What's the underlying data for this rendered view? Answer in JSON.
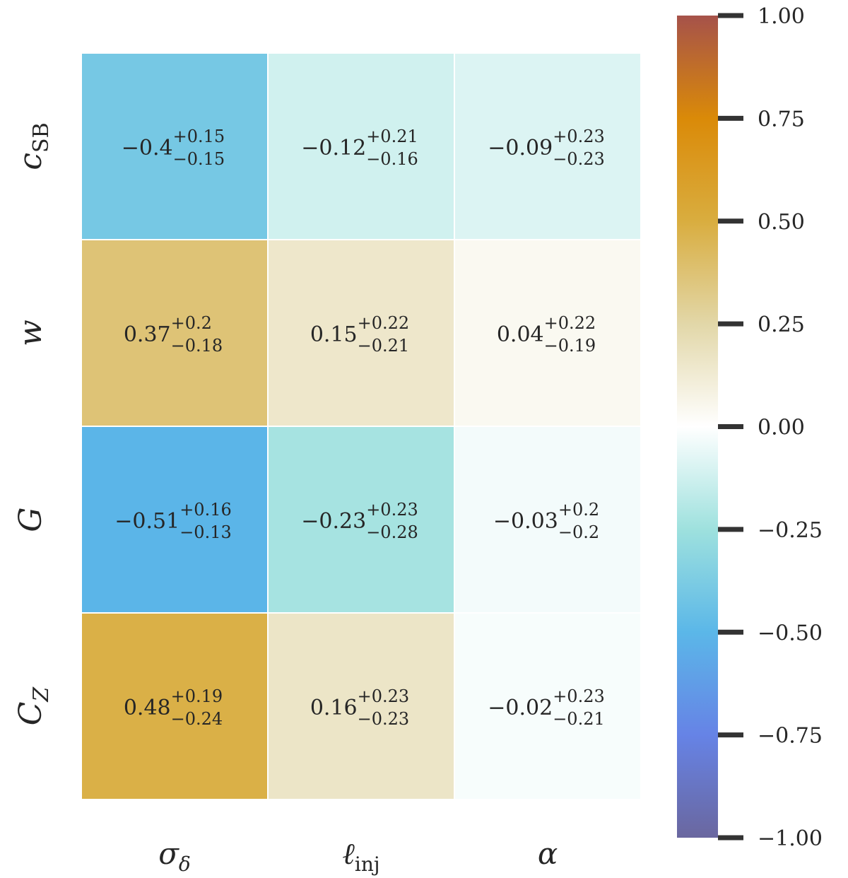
{
  "chart_data": {
    "type": "heatmap",
    "title": "",
    "row_labels": [
      {
        "main": "c",
        "sub": "SB",
        "italic_sub": false
      },
      {
        "main": "w",
        "sub": "",
        "italic_sub": false
      },
      {
        "main": "G",
        "sub": "",
        "italic_sub": false
      },
      {
        "main": "C",
        "sub": "Z",
        "italic_sub": true
      }
    ],
    "col_labels": [
      {
        "main": "σ",
        "sub": "δ",
        "italic_sub": true
      },
      {
        "main": "ℓ",
        "sub": "inj",
        "italic_sub": false
      },
      {
        "main": "α",
        "sub": "",
        "italic_sub": false
      }
    ],
    "cells": [
      [
        {
          "value": -0.4,
          "label": "−0.4",
          "plus": "+0.15",
          "minus": "−0.15"
        },
        {
          "value": -0.12,
          "label": "−0.12",
          "plus": "+0.21",
          "minus": "−0.16"
        },
        {
          "value": -0.09,
          "label": "−0.09",
          "plus": "+0.23",
          "minus": "−0.23"
        }
      ],
      [
        {
          "value": 0.37,
          "label": "0.37",
          "plus": "+0.2",
          "minus": "−0.18"
        },
        {
          "value": 0.15,
          "label": "0.15",
          "plus": "+0.22",
          "minus": "−0.21"
        },
        {
          "value": 0.04,
          "label": "0.04",
          "plus": "+0.22",
          "minus": "−0.19"
        }
      ],
      [
        {
          "value": -0.51,
          "label": "−0.51",
          "plus": "+0.16",
          "minus": "−0.13"
        },
        {
          "value": -0.23,
          "label": "−0.23",
          "plus": "+0.23",
          "minus": "−0.28"
        },
        {
          "value": -0.03,
          "label": "−0.03",
          "plus": "+0.2",
          "minus": "−0.2"
        }
      ],
      [
        {
          "value": 0.48,
          "label": "0.48",
          "plus": "+0.19",
          "minus": "−0.24"
        },
        {
          "value": 0.16,
          "label": "0.16",
          "plus": "+0.23",
          "minus": "−0.23"
        },
        {
          "value": -0.02,
          "label": "−0.02",
          "plus": "+0.23",
          "minus": "−0.21"
        }
      ]
    ],
    "colorbar": {
      "range": [
        -1.0,
        1.0
      ],
      "ticks": [
        {
          "value": 1.0,
          "label": "1.00"
        },
        {
          "value": 0.75,
          "label": "0.75"
        },
        {
          "value": 0.5,
          "label": "0.50"
        },
        {
          "value": 0.25,
          "label": "0.25"
        },
        {
          "value": 0.0,
          "label": "0.00"
        },
        {
          "value": -0.25,
          "label": "−0.25"
        },
        {
          "value": -0.5,
          "label": "−0.50"
        },
        {
          "value": -0.75,
          "label": "−0.75"
        },
        {
          "value": -1.0,
          "label": "−1.00"
        }
      ],
      "color_stops": [
        {
          "value": -1.0,
          "color": "#6a679f"
        },
        {
          "value": -0.75,
          "color": "#6683e6"
        },
        {
          "value": -0.5,
          "color": "#5bb7e8"
        },
        {
          "value": -0.25,
          "color": "#9ee1de"
        },
        {
          "value": 0.0,
          "color": "#ffffff"
        },
        {
          "value": 0.25,
          "color": "#e2d7a8"
        },
        {
          "value": 0.5,
          "color": "#d9ad3f"
        },
        {
          "value": 0.75,
          "color": "#da8a08"
        },
        {
          "value": 1.0,
          "color": "#a6524a"
        }
      ]
    }
  },
  "style": {
    "text_color": "#262626",
    "tick_color": "#333333",
    "grid_line_color": "#ffffff"
  }
}
